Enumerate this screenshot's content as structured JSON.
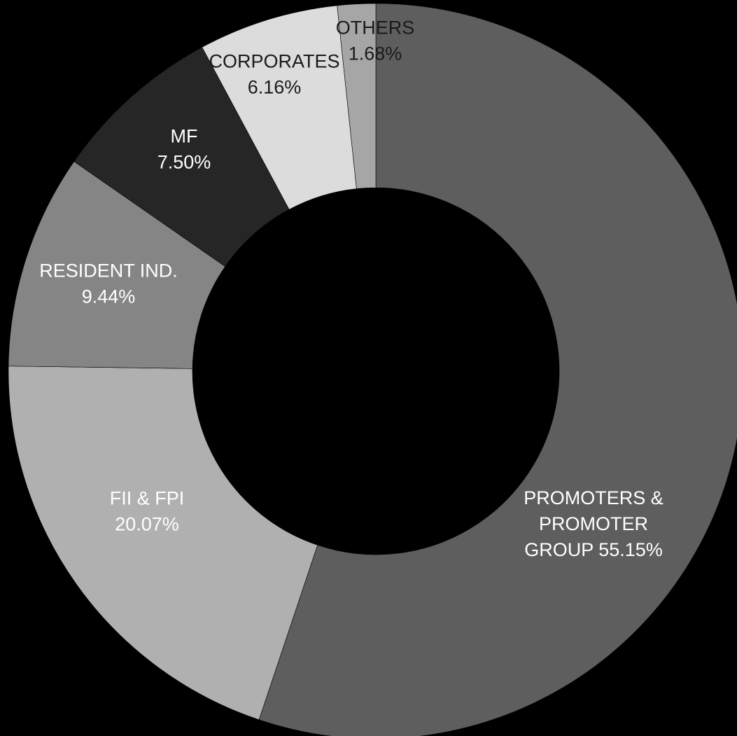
{
  "chart_data": {
    "type": "pie",
    "donut": true,
    "title": "",
    "start_angle_deg": 0,
    "direction": "clockwise",
    "slices": [
      {
        "label": "PROMOTERS & PROMOTER GROUP",
        "value": 55.15,
        "value_label": "55.15%",
        "label_lines": [
          "PROMOTERS &",
          "PROMOTER",
          "GROUP 55.15%"
        ],
        "color": "#5e5e5e",
        "text_color": "#ffffff"
      },
      {
        "label": "FII & FPI",
        "value": 20.07,
        "value_label": "20.07%",
        "label_lines": [
          "FII & FPI",
          "20.07%"
        ],
        "color": "#b0b0b0",
        "text_color": "#ffffff"
      },
      {
        "label": "RESIDENT IND.",
        "value": 9.44,
        "value_label": "9.44%",
        "label_lines": [
          "RESIDENT IND.",
          "9.44%"
        ],
        "color": "#858585",
        "text_color": "#ffffff"
      },
      {
        "label": "MF",
        "value": 7.5,
        "value_label": "7.50%",
        "label_lines": [
          "MF",
          "7.50%"
        ],
        "color": "#262626",
        "text_color": "#ffffff"
      },
      {
        "label": "CORPORATES",
        "value": 6.16,
        "value_label": "6.16%",
        "label_lines": [
          "CORPORATES",
          "6.16%"
        ],
        "color": "#dcdcdc",
        "text_color": "#1a1a1a"
      },
      {
        "label": "OTHERS",
        "value": 1.68,
        "value_label": "1.68%",
        "label_lines": [
          "OTHERS",
          "1.68%"
        ],
        "color": "#a6a6a6",
        "text_color": "#1a1a1a"
      }
    ]
  }
}
